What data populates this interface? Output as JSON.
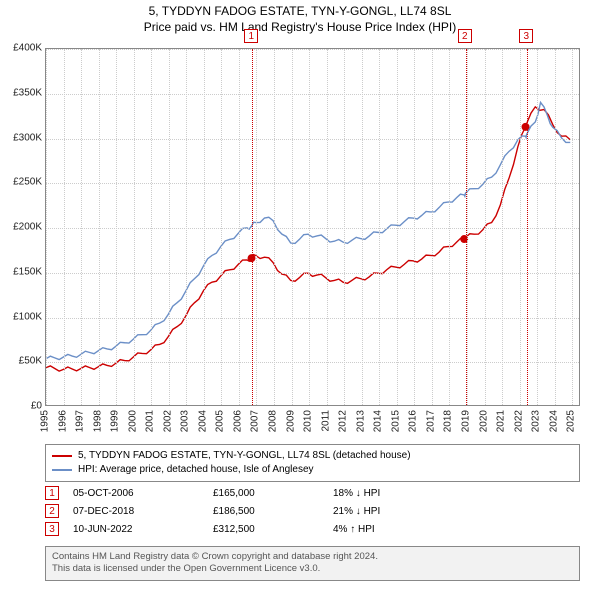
{
  "title": {
    "line1": "5, TYDDYN FADOG ESTATE, TYN-Y-GONGL, LL74 8SL",
    "line2": "Price paid vs. HM Land Registry's House Price Index (HPI)"
  },
  "chart": {
    "type": "line",
    "background_color": "#ffffff",
    "grid_color": "#cccccc",
    "axis_color": "#888888",
    "ylim": [
      0,
      400000
    ],
    "ytick_step": 50000,
    "ytick_labels": [
      "£0",
      "£50K",
      "£100K",
      "£150K",
      "£200K",
      "£250K",
      "£300K",
      "£350K",
      "£400K"
    ],
    "x_years": [
      1995,
      1996,
      1997,
      1998,
      1999,
      2000,
      2001,
      2002,
      2003,
      2004,
      2005,
      2006,
      2007,
      2008,
      2009,
      2010,
      2011,
      2012,
      2013,
      2014,
      2015,
      2016,
      2017,
      2018,
      2019,
      2020,
      2021,
      2022,
      2023,
      2024,
      2025
    ],
    "x_range": [
      1995,
      2025.5
    ],
    "salemark_color": "#cc0000",
    "series": [
      {
        "name": "price_paid",
        "label": "5, TYDDYN FADOG ESTATE, TYN-Y-GONGL, LL74 8SL (detached house)",
        "color": "#cc0000",
        "line_width": 1.4,
        "points": [
          [
            1995.0,
            42000
          ],
          [
            1995.5,
            41000
          ],
          [
            1996.0,
            40000
          ],
          [
            1996.5,
            40500
          ],
          [
            1997.0,
            41000
          ],
          [
            1997.5,
            42000
          ],
          [
            1998.0,
            43000
          ],
          [
            1998.5,
            44500
          ],
          [
            1999.0,
            47000
          ],
          [
            1999.5,
            50000
          ],
          [
            2000.0,
            54000
          ],
          [
            2000.5,
            58000
          ],
          [
            2001.0,
            62000
          ],
          [
            2001.5,
            68000
          ],
          [
            2002.0,
            77000
          ],
          [
            2002.5,
            88000
          ],
          [
            2003.0,
            100000
          ],
          [
            2003.5,
            115000
          ],
          [
            2004.0,
            128000
          ],
          [
            2004.5,
            138000
          ],
          [
            2005.0,
            145000
          ],
          [
            2005.5,
            152000
          ],
          [
            2006.0,
            158000
          ],
          [
            2006.5,
            163000
          ],
          [
            2006.76,
            165000
          ],
          [
            2007.0,
            168000
          ],
          [
            2007.5,
            166000
          ],
          [
            2008.0,
            160000
          ],
          [
            2008.5,
            147000
          ],
          [
            2009.0,
            140000
          ],
          [
            2009.5,
            143000
          ],
          [
            2010.0,
            148000
          ],
          [
            2010.5,
            146000
          ],
          [
            2011.0,
            143000
          ],
          [
            2011.5,
            140000
          ],
          [
            2012.0,
            138000
          ],
          [
            2012.5,
            140000
          ],
          [
            2013.0,
            142000
          ],
          [
            2013.5,
            144000
          ],
          [
            2014.0,
            148000
          ],
          [
            2014.5,
            152000
          ],
          [
            2015.0,
            155000
          ],
          [
            2015.5,
            158000
          ],
          [
            2016.0,
            162000
          ],
          [
            2016.5,
            164000
          ],
          [
            2017.0,
            168000
          ],
          [
            2017.5,
            172000
          ],
          [
            2018.0,
            178000
          ],
          [
            2018.5,
            183000
          ],
          [
            2018.93,
            186500
          ],
          [
            2019.0,
            188000
          ],
          [
            2019.5,
            192000
          ],
          [
            2020.0,
            197000
          ],
          [
            2020.5,
            205000
          ],
          [
            2021.0,
            225000
          ],
          [
            2021.5,
            255000
          ],
          [
            2022.0,
            290000
          ],
          [
            2022.44,
            312500
          ],
          [
            2022.5,
            316000
          ],
          [
            2023.0,
            335000
          ],
          [
            2023.5,
            332000
          ],
          [
            2024.0,
            315000
          ],
          [
            2024.5,
            302000
          ],
          [
            2025.0,
            298000
          ]
        ]
      },
      {
        "name": "hpi",
        "label": "HPI: Average price, detached house, Isle of Anglesey",
        "color": "#6b8fc7",
        "line_width": 1.4,
        "points": [
          [
            1995.0,
            52000
          ],
          [
            1995.5,
            53000
          ],
          [
            1996.0,
            54000
          ],
          [
            1996.5,
            55000
          ],
          [
            1997.0,
            57000
          ],
          [
            1997.5,
            59000
          ],
          [
            1998.0,
            61000
          ],
          [
            1998.5,
            63000
          ],
          [
            1999.0,
            66000
          ],
          [
            1999.5,
            70000
          ],
          [
            2000.0,
            74000
          ],
          [
            2000.5,
            79000
          ],
          [
            2001.0,
            84000
          ],
          [
            2001.5,
            92000
          ],
          [
            2002.0,
            102000
          ],
          [
            2002.5,
            115000
          ],
          [
            2003.0,
            128000
          ],
          [
            2003.5,
            142000
          ],
          [
            2004.0,
            156000
          ],
          [
            2004.5,
            168000
          ],
          [
            2005.0,
            178000
          ],
          [
            2005.5,
            186000
          ],
          [
            2006.0,
            193000
          ],
          [
            2006.5,
            199000
          ],
          [
            2006.76,
            201000
          ],
          [
            2007.0,
            205000
          ],
          [
            2007.5,
            210000
          ],
          [
            2008.0,
            207000
          ],
          [
            2008.5,
            192000
          ],
          [
            2009.0,
            182000
          ],
          [
            2009.5,
            186000
          ],
          [
            2010.0,
            192000
          ],
          [
            2010.5,
            190000
          ],
          [
            2011.0,
            187000
          ],
          [
            2011.5,
            184000
          ],
          [
            2012.0,
            183000
          ],
          [
            2012.5,
            185000
          ],
          [
            2013.0,
            187000
          ],
          [
            2013.5,
            190000
          ],
          [
            2014.0,
            194000
          ],
          [
            2014.5,
            198000
          ],
          [
            2015.0,
            202000
          ],
          [
            2015.5,
            206000
          ],
          [
            2016.0,
            210000
          ],
          [
            2016.5,
            213000
          ],
          [
            2017.0,
            217000
          ],
          [
            2017.5,
            222000
          ],
          [
            2018.0,
            228000
          ],
          [
            2018.5,
            233000
          ],
          [
            2018.93,
            236000
          ],
          [
            2019.0,
            238000
          ],
          [
            2019.5,
            243000
          ],
          [
            2020.0,
            248000
          ],
          [
            2020.5,
            256000
          ],
          [
            2021.0,
            270000
          ],
          [
            2021.5,
            285000
          ],
          [
            2022.0,
            298000
          ],
          [
            2022.44,
            302000
          ],
          [
            2022.5,
            304000
          ],
          [
            2023.0,
            318000
          ],
          [
            2023.3,
            340000
          ],
          [
            2023.7,
            325000
          ],
          [
            2024.0,
            312000
          ],
          [
            2024.5,
            300000
          ],
          [
            2025.0,
            295000
          ]
        ]
      }
    ],
    "sales_markers": [
      {
        "n": "1",
        "year": 2006.76,
        "price": 165000,
        "color": "#cc0000"
      },
      {
        "n": "2",
        "year": 2018.93,
        "price": 186500,
        "color": "#cc0000"
      },
      {
        "n": "3",
        "year": 2022.44,
        "price": 312500,
        "color": "#cc0000"
      }
    ]
  },
  "legend": {
    "series1_label": "5, TYDDYN FADOG ESTATE, TYN-Y-GONGL, LL74 8SL (detached house)",
    "series1_color": "#cc0000",
    "series2_label": "HPI: Average price, detached house, Isle of Anglesey",
    "series2_color": "#6b8fc7"
  },
  "sales_table": [
    {
      "n": "1",
      "date": "05-OCT-2006",
      "price": "£165,000",
      "diff": "18% ↓ HPI"
    },
    {
      "n": "2",
      "date": "07-DEC-2018",
      "price": "£186,500",
      "diff": "21% ↓ HPI"
    },
    {
      "n": "3",
      "date": "10-JUN-2022",
      "price": "£312,500",
      "diff": "4% ↑ HPI"
    }
  ],
  "attribution": {
    "line1": "Contains HM Land Registry data © Crown copyright and database right 2024.",
    "line2": "This data is licensed under the Open Government Licence v3.0."
  }
}
